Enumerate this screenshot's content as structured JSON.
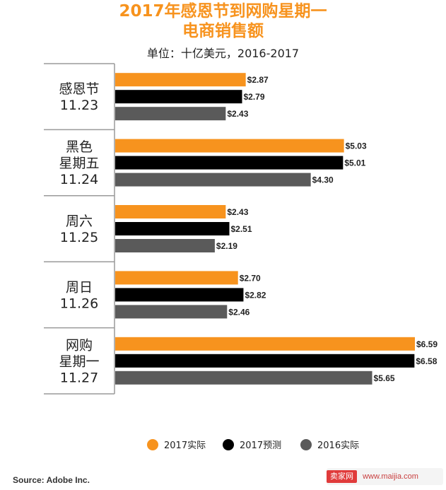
{
  "header": {
    "title_line1": "2017年感恩节到网购星期一",
    "title_line2": "电商销售额",
    "subtitle": "单位：十亿美元，2016-2017"
  },
  "chart_data": {
    "type": "bar",
    "orientation": "horizontal",
    "title": "2017年感恩节到网购星期一 电商销售额",
    "subtitle": "单位：十亿美元，2016-2017",
    "categories": [
      [
        "感恩节",
        "11.23"
      ],
      [
        "黑色",
        "星期五",
        "11.24"
      ],
      [
        "周六",
        "11.25"
      ],
      [
        "周日",
        "11.26"
      ],
      [
        "网购",
        "星期一",
        "11.27"
      ]
    ],
    "series": [
      {
        "name": "2017实际",
        "color": "#f7931e",
        "values": [
          2.87,
          5.03,
          2.43,
          2.7,
          6.59
        ]
      },
      {
        "name": "2017预测",
        "color": "#000000",
        "values": [
          2.79,
          5.01,
          2.51,
          2.82,
          6.58
        ]
      },
      {
        "name": "2016实际",
        "color": "#5a5a5a",
        "values": [
          2.43,
          4.3,
          2.19,
          2.46,
          5.65
        ]
      }
    ],
    "value_prefix": "$",
    "xlim": [
      0,
      6.59
    ],
    "grid": false,
    "legend_position": "bottom"
  },
  "footer": {
    "source": "Source: Adobe Inc.",
    "watermark_badge": "卖家网",
    "watermark_url": "www.maijia.com"
  }
}
